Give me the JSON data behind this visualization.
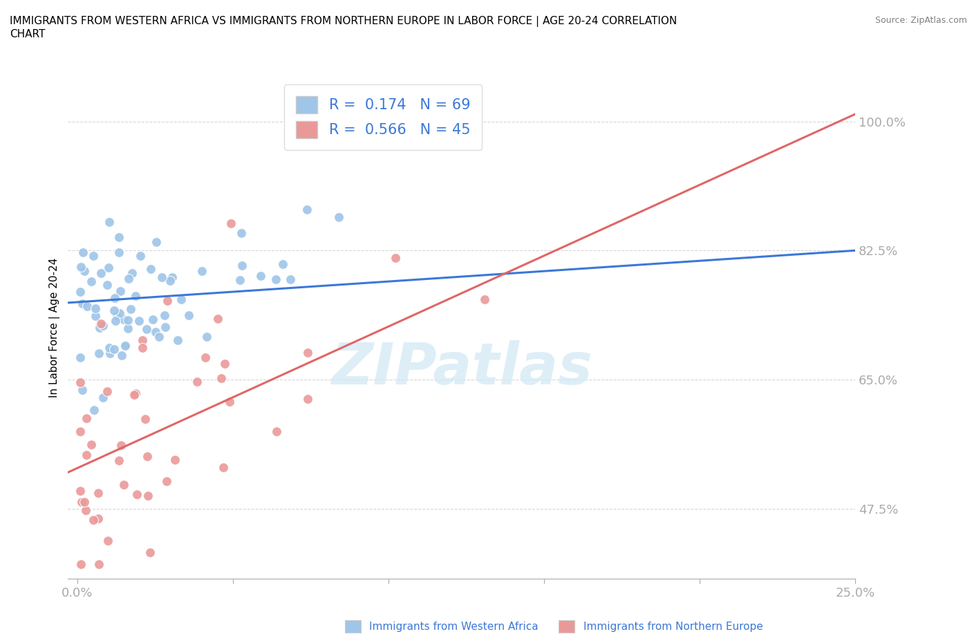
{
  "title_line1": "IMMIGRANTS FROM WESTERN AFRICA VS IMMIGRANTS FROM NORTHERN EUROPE IN LABOR FORCE | AGE 20-24 CORRELATION",
  "title_line2": "CHART",
  "source_text": "Source: ZipAtlas.com",
  "ylabel": "In Labor Force | Age 20-24",
  "xlim": [
    -0.003,
    0.25
  ],
  "ylim": [
    0.38,
    1.06
  ],
  "yticks": [
    0.475,
    0.65,
    0.825,
    1.0
  ],
  "ytick_labels": [
    "47.5%",
    "65.0%",
    "82.5%",
    "100.0%"
  ],
  "xticks": [
    0.0,
    0.05,
    0.1,
    0.15,
    0.2,
    0.25
  ],
  "xtick_labels": [
    "0.0%",
    "",
    "",
    "",
    "",
    "25.0%"
  ],
  "blue_color": "#9fc5e8",
  "pink_color": "#ea9999",
  "blue_line_color": "#3c78d8",
  "pink_line_color": "#e06666",
  "grid_color": "#cccccc",
  "tick_color": "#3c78d8",
  "axis_color": "#aaaaaa",
  "R_blue": 0.174,
  "N_blue": 69,
  "R_pink": 0.566,
  "N_pink": 45,
  "legend_label_blue": "Immigrants from Western Africa",
  "legend_label_pink": "Immigrants from Northern Europe",
  "watermark": "ZIPatlas",
  "blue_intercept": 0.755,
  "blue_slope": 0.28,
  "pink_intercept": 0.53,
  "pink_slope": 1.92
}
